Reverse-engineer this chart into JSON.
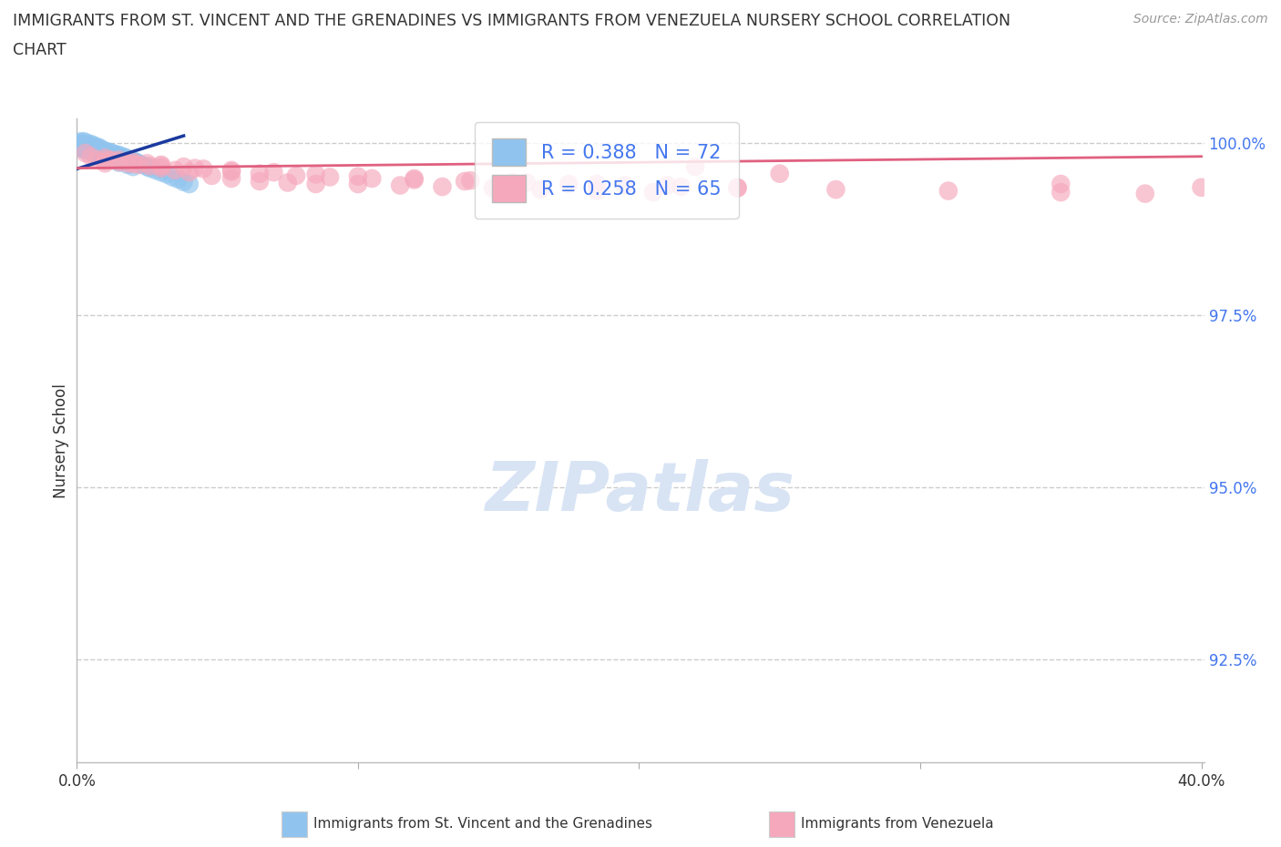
{
  "title_line1": "IMMIGRANTS FROM ST. VINCENT AND THE GRENADINES VS IMMIGRANTS FROM VENEZUELA NURSERY SCHOOL CORRELATION",
  "title_line2": "CHART",
  "source": "Source: ZipAtlas.com",
  "ylabel": "Nursery School",
  "R1": 0.388,
  "N1": 72,
  "R2": 0.258,
  "N2": 65,
  "color1": "#90C4EE",
  "color2": "#F5A8BC",
  "trendline_color1": "#1a3a9e",
  "trendline_color2": "#e06080",
  "legend_label1": "Immigrants from St. Vincent and the Grenadines",
  "legend_label2": "Immigrants from Venezuela",
  "xlim": [
    0.0,
    0.4
  ],
  "ylim": [
    0.91,
    1.003
  ],
  "background_color": "#ffffff",
  "grid_color": "#cccccc",
  "ytick_color": "#4477EE",
  "text_color": "#333333",
  "watermark_color": "#d8e4f4",
  "blue_x": [
    0.001,
    0.001,
    0.002,
    0.002,
    0.002,
    0.003,
    0.003,
    0.003,
    0.003,
    0.004,
    0.004,
    0.004,
    0.005,
    0.005,
    0.005,
    0.006,
    0.006,
    0.006,
    0.007,
    0.007,
    0.007,
    0.008,
    0.008,
    0.009,
    0.009,
    0.01,
    0.01,
    0.011,
    0.011,
    0.012,
    0.012,
    0.013,
    0.013,
    0.014,
    0.015,
    0.015,
    0.016,
    0.017,
    0.018,
    0.019,
    0.02,
    0.021,
    0.022,
    0.023,
    0.025,
    0.026,
    0.028,
    0.03,
    0.032,
    0.034,
    0.036,
    0.038,
    0.04,
    0.002,
    0.003,
    0.004,
    0.005,
    0.006,
    0.007,
    0.001,
    0.001,
    0.002,
    0.003,
    0.004,
    0.005,
    0.007,
    0.009,
    0.011,
    0.013,
    0.015,
    0.018,
    0.02
  ],
  "blue_y": [
    0.9995,
    0.9992,
    1.0002,
    0.9998,
    0.9994,
    1.0001,
    0.9997,
    0.9993,
    0.9989,
    0.9998,
    0.9994,
    0.999,
    0.9998,
    0.9994,
    0.9989,
    0.9996,
    0.9992,
    0.9988,
    0.9994,
    0.999,
    0.9986,
    0.9993,
    0.9989,
    0.999,
    0.9986,
    0.9988,
    0.9984,
    0.9987,
    0.9983,
    0.9986,
    0.9982,
    0.9984,
    0.998,
    0.9983,
    0.9982,
    0.9978,
    0.998,
    0.9979,
    0.9977,
    0.9975,
    0.9974,
    0.9972,
    0.997,
    0.9968,
    0.9965,
    0.9963,
    0.996,
    0.9957,
    0.9954,
    0.995,
    0.9947,
    0.9943,
    0.994,
    0.9996,
    0.9993,
    0.999,
    0.9988,
    0.9985,
    0.9982,
    1.0001,
    0.9998,
    0.9996,
    0.9993,
    0.9991,
    0.9988,
    0.9984,
    0.9981,
    0.9978,
    0.9975,
    0.9971,
    0.9968,
    0.9965
  ],
  "pink_x": [
    0.003,
    0.005,
    0.007,
    0.01,
    0.012,
    0.015,
    0.018,
    0.022,
    0.026,
    0.03,
    0.035,
    0.04,
    0.048,
    0.055,
    0.065,
    0.075,
    0.085,
    0.1,
    0.115,
    0.13,
    0.148,
    0.165,
    0.185,
    0.205,
    0.01,
    0.015,
    0.02,
    0.025,
    0.03,
    0.038,
    0.045,
    0.055,
    0.065,
    0.078,
    0.09,
    0.105,
    0.12,
    0.138,
    0.155,
    0.175,
    0.195,
    0.215,
    0.235,
    0.01,
    0.02,
    0.03,
    0.042,
    0.055,
    0.07,
    0.085,
    0.1,
    0.12,
    0.14,
    0.16,
    0.185,
    0.21,
    0.235,
    0.27,
    0.31,
    0.35,
    0.38,
    0.22,
    0.25,
    0.35,
    0.4
  ],
  "pink_y": [
    0.9985,
    0.998,
    0.9975,
    0.997,
    0.9975,
    0.9972,
    0.997,
    0.9968,
    0.9966,
    0.9963,
    0.996,
    0.9957,
    0.9952,
    0.9948,
    0.9944,
    0.9942,
    0.994,
    0.994,
    0.9938,
    0.9936,
    0.9934,
    0.9932,
    0.993,
    0.9928,
    0.9978,
    0.9975,
    0.9972,
    0.997,
    0.9968,
    0.9965,
    0.9962,
    0.9958,
    0.9955,
    0.9952,
    0.995,
    0.9948,
    0.9946,
    0.9944,
    0.9942,
    0.994,
    0.9938,
    0.9936,
    0.9934,
    0.9974,
    0.9969,
    0.9966,
    0.9963,
    0.996,
    0.9957,
    0.9954,
    0.9951,
    0.9948,
    0.9945,
    0.9942,
    0.994,
    0.9938,
    0.9935,
    0.9932,
    0.993,
    0.9928,
    0.9926,
    0.9965,
    0.9955,
    0.994,
    0.9935
  ]
}
